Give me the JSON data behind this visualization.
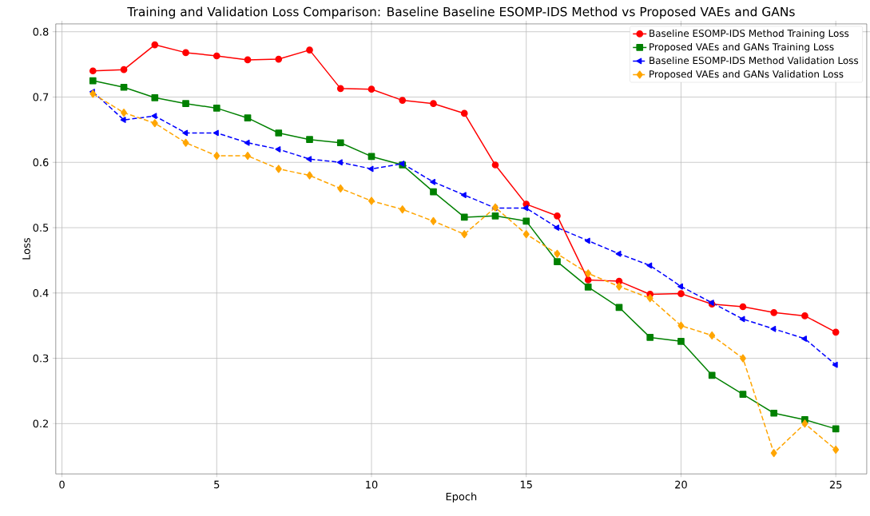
{
  "chart_data": {
    "type": "line",
    "title": "Training and Validation Loss Comparison: Baseline Baseline ESOMP-IDS Method vs Proposed VAEs and GANs",
    "xlabel": "Epoch",
    "ylabel": "Loss",
    "x": [
      1,
      2,
      3,
      4,
      5,
      6,
      7,
      8,
      9,
      10,
      11,
      12,
      13,
      14,
      15,
      16,
      17,
      18,
      19,
      20,
      21,
      22,
      23,
      24,
      25
    ],
    "xlim": [
      -0.2,
      26.0
    ],
    "ylim": [
      0.123,
      0.812
    ],
    "xticks": [
      0,
      5,
      10,
      15,
      20,
      25
    ],
    "yticks": [
      0.2,
      0.3,
      0.4,
      0.5,
      0.6,
      0.7,
      0.8
    ],
    "grid": true,
    "legend": "top right",
    "series": [
      {
        "name": "Baseline ESOMP-IDS Method Training Loss",
        "color": "#ff0000",
        "marker": "circle",
        "line_style": "solid",
        "values": [
          0.74,
          0.742,
          0.78,
          0.768,
          0.763,
          0.757,
          0.758,
          0.772,
          0.713,
          0.712,
          0.695,
          0.69,
          0.675,
          0.596,
          0.536,
          0.518,
          0.42,
          0.418,
          0.398,
          0.399,
          0.383,
          0.379,
          0.37,
          0.365,
          0.34
        ]
      },
      {
        "name": "Proposed VAEs and GANs Training Loss",
        "color": "#008000",
        "marker": "square",
        "line_style": "solid",
        "values": [
          0.725,
          0.715,
          0.699,
          0.69,
          0.683,
          0.668,
          0.645,
          0.635,
          0.63,
          0.609,
          0.596,
          0.555,
          0.516,
          0.518,
          0.51,
          0.448,
          0.409,
          0.378,
          0.332,
          0.326,
          0.274,
          0.245,
          0.216,
          0.206,
          0.192
        ]
      },
      {
        "name": "Baseline ESOMP-IDS Method Validation Loss",
        "color": "#0000ff",
        "marker": "triangle",
        "line_style": "dashed",
        "values": [
          0.708,
          0.665,
          0.671,
          0.645,
          0.645,
          0.63,
          0.62,
          0.605,
          0.6,
          0.59,
          0.598,
          0.57,
          0.55,
          0.53,
          0.53,
          0.5,
          0.48,
          0.46,
          0.442,
          0.41,
          0.385,
          0.36,
          0.345,
          0.33,
          0.29
        ]
      },
      {
        "name": "Proposed VAEs and GANs Validation Loss",
        "color": "#ffa500",
        "marker": "diamond",
        "line_style": "dashed",
        "values": [
          0.705,
          0.676,
          0.66,
          0.63,
          0.61,
          0.61,
          0.59,
          0.58,
          0.56,
          0.541,
          0.528,
          0.51,
          0.49,
          0.531,
          0.49,
          0.46,
          0.43,
          0.41,
          0.392,
          0.35,
          0.335,
          0.3,
          0.155,
          0.2,
          0.16
        ]
      }
    ]
  }
}
